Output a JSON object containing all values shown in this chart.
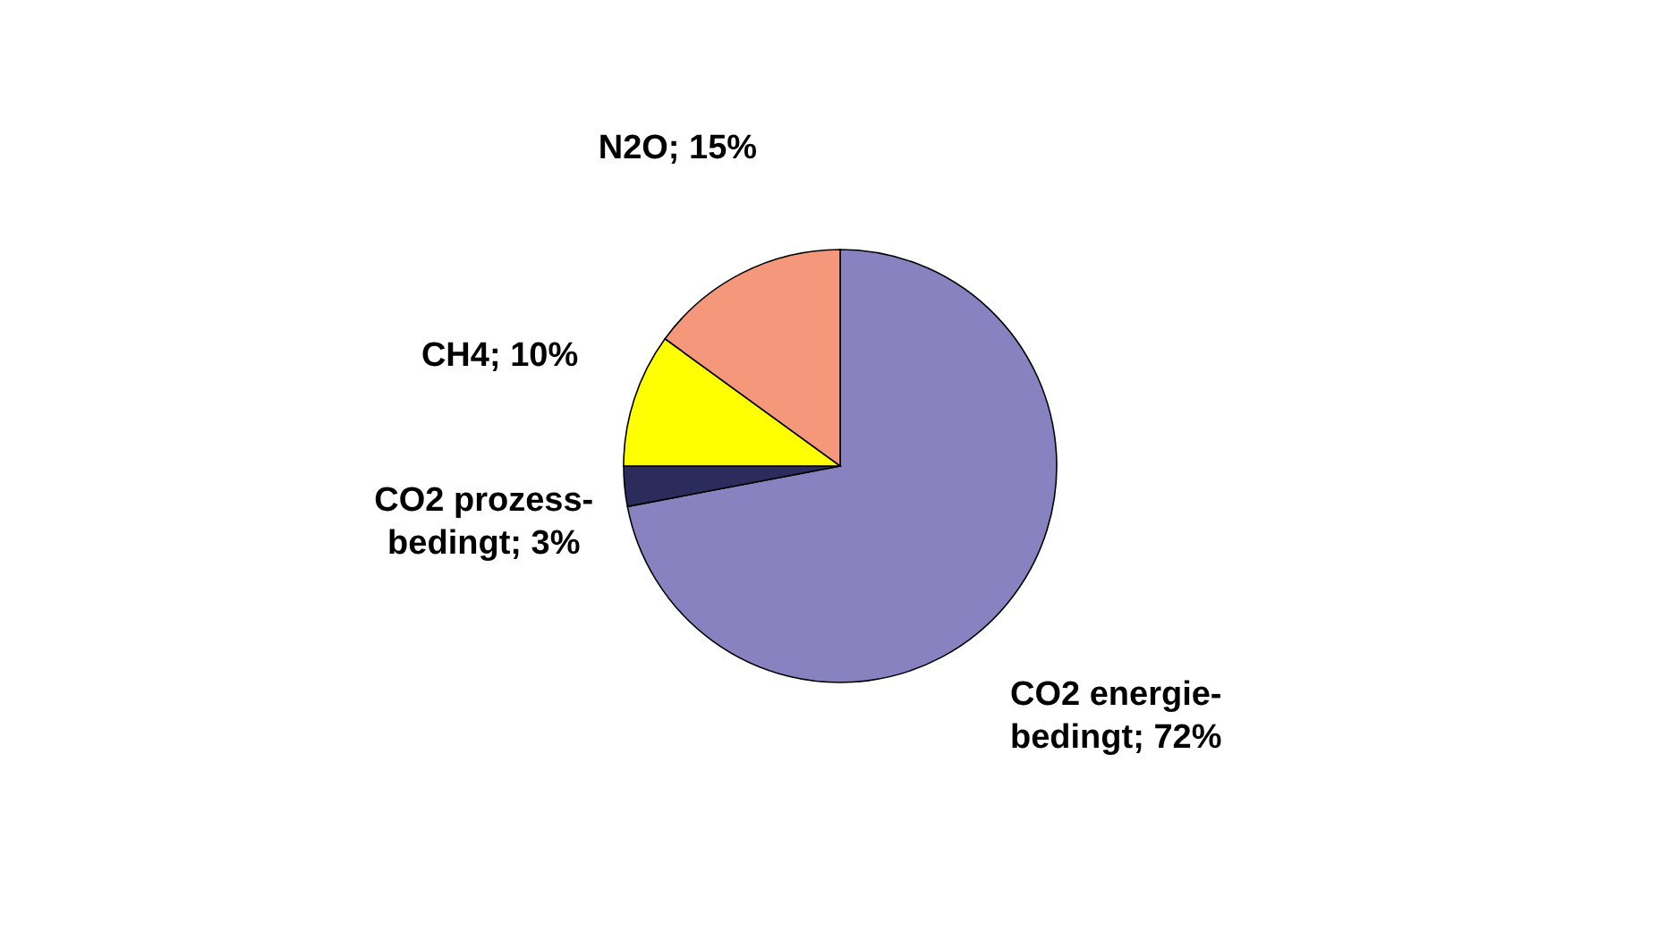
{
  "chart_data": {
    "type": "pie",
    "categories": [
      "CO2 energie-\nbedingt",
      "CO2 prozess-\nbedingt",
      "CH4",
      "N2O"
    ],
    "values": [
      72,
      3,
      10,
      15
    ],
    "colors": [
      "#8883c0",
      "#2b2b5c",
      "#ffff00",
      "#f5977a"
    ],
    "value_labels": [
      "72%",
      "3%",
      "10%",
      "15%"
    ]
  }
}
